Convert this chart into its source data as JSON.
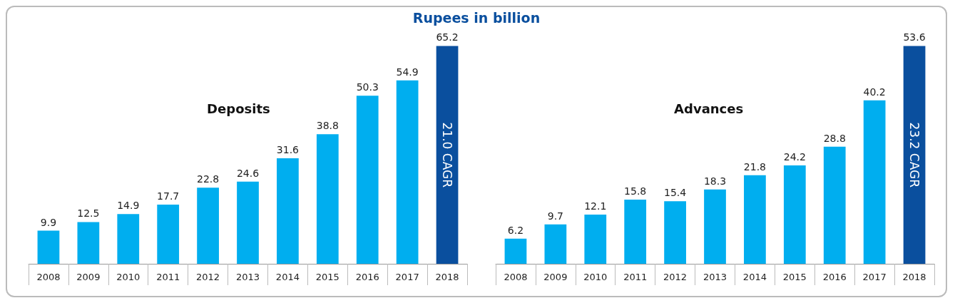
{
  "chart_data": [
    {
      "type": "bar",
      "title": "Deposits",
      "categories": [
        "2008",
        "2009",
        "2010",
        "2011",
        "2012",
        "2013",
        "2014",
        "2015",
        "2016",
        "2017",
        "2018"
      ],
      "values": [
        9.9,
        12.5,
        14.9,
        17.7,
        22.8,
        24.6,
        31.6,
        38.8,
        50.3,
        54.9,
        65.2
      ],
      "colors": [
        "#00aeef",
        "#00aeef",
        "#00aeef",
        "#00aeef",
        "#00aeef",
        "#00aeef",
        "#00aeef",
        "#00aeef",
        "#00aeef",
        "#00aeef",
        "#0a4f9e"
      ],
      "data_labels": true,
      "tick_labels": "x",
      "annotations": [
        "Rupees in billion",
        "21.0 CAGR"
      ]
    },
    {
      "type": "bar",
      "title": "Advances",
      "categories": [
        "2008",
        "2009",
        "2010",
        "2011",
        "2012",
        "2013",
        "2014",
        "2015",
        "2016",
        "2017",
        "2018"
      ],
      "values": [
        6.2,
        9.7,
        12.1,
        15.8,
        15.4,
        18.3,
        21.8,
        24.2,
        28.8,
        40.2,
        53.6
      ],
      "colors": [
        "#00aeef",
        "#00aeef",
        "#00aeef",
        "#00aeef",
        "#00aeef",
        "#00aeef",
        "#00aeef",
        "#00aeef",
        "#00aeef",
        "#00aeef",
        "#0a4f9e"
      ],
      "data_labels": true,
      "tick_labels": "x",
      "annotations": [
        "23.2 CAGR"
      ]
    }
  ]
}
